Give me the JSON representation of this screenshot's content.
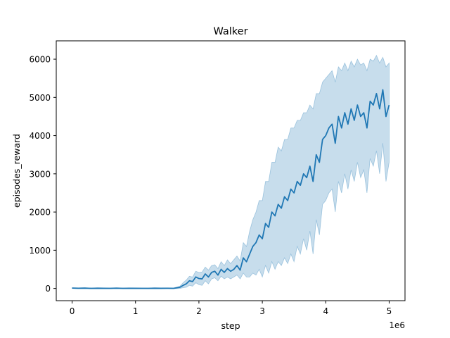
{
  "chart_data": {
    "type": "line",
    "title": "Walker",
    "xlabel": "step",
    "ylabel": "episodes_reward",
    "x_offset_label": "1e6",
    "x_scale": 1000000,
    "xlim": [
      -250000,
      5250000
    ],
    "ylim": [
      -320,
      6480
    ],
    "x_ticks": [
      0,
      1000000,
      2000000,
      3000000,
      4000000,
      5000000
    ],
    "x_tick_labels": [
      "0",
      "1",
      "2",
      "3",
      "4",
      "5"
    ],
    "y_ticks": [
      0,
      1000,
      2000,
      3000,
      4000,
      5000,
      6000
    ],
    "y_tick_labels": [
      "0",
      "1000",
      "2000",
      "3000",
      "4000",
      "5000",
      "6000"
    ],
    "grid": false,
    "colors": {
      "line": "#1f77b4",
      "band": "#1f77b4",
      "band_opacity": 0.25
    },
    "series": [
      {
        "x": [
          0,
          100000,
          200000,
          300000,
          400000,
          500000,
          600000,
          700000,
          800000,
          900000,
          1000000,
          1100000,
          1200000,
          1300000,
          1400000,
          1500000,
          1600000,
          1700000,
          1750000,
          1800000,
          1850000,
          1900000,
          1950000,
          2000000,
          2050000,
          2100000,
          2150000,
          2200000,
          2250000,
          2300000,
          2350000,
          2400000,
          2450000,
          2500000,
          2550000,
          2600000,
          2650000,
          2700000,
          2750000,
          2800000,
          2850000,
          2900000,
          2950000,
          3000000,
          3050000,
          3100000,
          3150000,
          3200000,
          3250000,
          3300000,
          3350000,
          3400000,
          3450000,
          3500000,
          3550000,
          3600000,
          3650000,
          3700000,
          3750000,
          3800000,
          3850000,
          3900000,
          3950000,
          4000000,
          4050000,
          4100000,
          4150000,
          4200000,
          4250000,
          4300000,
          4350000,
          4400000,
          4450000,
          4500000,
          4550000,
          4600000,
          4650000,
          4700000,
          4750000,
          4800000,
          4850000,
          4900000,
          4950000,
          5000000
        ],
        "mean": [
          10,
          5,
          8,
          2,
          6,
          4,
          3,
          7,
          2,
          5,
          4,
          3,
          2,
          6,
          4,
          5,
          3,
          30,
          80,
          120,
          200,
          180,
          300,
          260,
          250,
          380,
          300,
          420,
          450,
          350,
          500,
          420,
          520,
          450,
          500,
          600,
          480,
          800,
          700,
          900,
          1100,
          1200,
          1400,
          1300,
          1700,
          1600,
          2000,
          1900,
          2200,
          2100,
          2400,
          2300,
          2600,
          2500,
          2800,
          2700,
          3000,
          2900,
          3200,
          2800,
          3500,
          3300,
          3900,
          4000,
          4200,
          4300,
          3800,
          4500,
          4200,
          4600,
          4300,
          4700,
          4400,
          4800,
          4500,
          4600,
          4200,
          4900,
          4800,
          5100,
          4700,
          5200,
          4500,
          4800
        ],
        "lower": [
          0,
          -5,
          0,
          -8,
          -3,
          -6,
          -7,
          -2,
          -8,
          -5,
          -6,
          -7,
          -8,
          -3,
          -6,
          -5,
          -7,
          0,
          20,
          30,
          80,
          60,
          150,
          100,
          80,
          200,
          120,
          250,
          280,
          200,
          320,
          250,
          300,
          250,
          300,
          350,
          250,
          400,
          300,
          300,
          400,
          350,
          500,
          300,
          600,
          400,
          700,
          500,
          700,
          600,
          800,
          650,
          900,
          700,
          1100,
          900,
          1300,
          1000,
          1500,
          900,
          1800,
          1400,
          2200,
          2300,
          2500,
          2600,
          2000,
          2800,
          2500,
          3000,
          2600,
          3100,
          2800,
          3300,
          2900,
          3100,
          2500,
          3400,
          3200,
          3600,
          3000,
          3800,
          2800,
          3300
        ],
        "upper": [
          20,
          15,
          18,
          12,
          16,
          14,
          13,
          17,
          12,
          15,
          14,
          13,
          12,
          16,
          14,
          15,
          13,
          60,
          150,
          220,
          320,
          300,
          450,
          420,
          430,
          560,
          480,
          600,
          620,
          520,
          700,
          600,
          750,
          650,
          750,
          850,
          720,
          1200,
          1100,
          1500,
          1800,
          2000,
          2300,
          2300,
          2800,
          2800,
          3300,
          3300,
          3700,
          3600,
          3900,
          3900,
          4200,
          4200,
          4400,
          4400,
          4600,
          4600,
          4800,
          4700,
          5100,
          5100,
          5400,
          5500,
          5600,
          5700,
          5400,
          5800,
          5700,
          5900,
          5700,
          5950,
          5800,
          6000,
          5850,
          5900,
          5700,
          6000,
          5950,
          6100,
          5900,
          6050,
          5800,
          5900
        ]
      }
    ]
  }
}
